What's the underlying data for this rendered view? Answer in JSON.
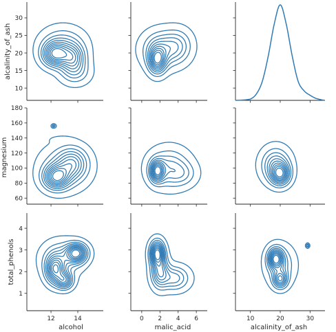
{
  "chart_data": {
    "type": "pairgrid-kde",
    "variables": [
      "alcohol",
      "malic_acid",
      "alcalinity_of_ash"
    ],
    "row_variables": [
      "alcalinity_of_ash",
      "magnesium",
      "total_phenols"
    ],
    "col_variables": [
      "alcohol",
      "malic_acid",
      "alcalinity_of_ash"
    ],
    "line_color": "#2f7ab4",
    "axes": {
      "alcohol": {
        "range": [
          10.2,
          15.9
        ],
        "ticks": [
          12,
          14
        ]
      },
      "malic_acid": {
        "range": [
          -1.2,
          7.2
        ],
        "ticks": [
          0,
          2,
          4,
          6
        ]
      },
      "alcalinity_of_ash": {
        "range": [
          5,
          35
        ],
        "ticks": [
          10,
          20,
          30
        ],
        "row_range": [
          6.5,
          34.5
        ],
        "row_ticks": [
          10,
          15,
          20,
          25,
          30
        ]
      },
      "magnesium": {
        "range": [
          52,
          180
        ],
        "ticks": [
          60,
          80,
          100,
          120,
          140,
          160,
          180
        ]
      },
      "total_phenols": {
        "range": [
          0.2,
          4.7
        ],
        "ticks": [
          1,
          2,
          3,
          4
        ]
      }
    },
    "panels": [
      {
        "row": 0,
        "col": 0,
        "kind": "kde2d",
        "peaks": [
          {
            "x": 12.3,
            "y": 19.7,
            "sx": 0.6,
            "sy": 2.2,
            "w": 1.0
          },
          {
            "x": 13.6,
            "y": 18.6,
            "sx": 0.6,
            "sy": 2.5,
            "w": 0.75
          },
          {
            "x": 12.9,
            "y": 22.5,
            "sx": 1.0,
            "sy": 3.0,
            "w": 0.35
          },
          {
            "x": 13.8,
            "y": 14.5,
            "sx": 0.7,
            "sy": 2.2,
            "w": 0.3
          }
        ]
      },
      {
        "row": 0,
        "col": 1,
        "kind": "kde2d",
        "peaks": [
          {
            "x": 1.7,
            "y": 18.0,
            "sx": 0.6,
            "sy": 2.4,
            "w": 1.0
          },
          {
            "x": 2.2,
            "y": 21.0,
            "sx": 1.3,
            "sy": 3.2,
            "w": 0.55
          },
          {
            "x": 4.0,
            "y": 22.0,
            "sx": 1.0,
            "sy": 3.0,
            "w": 0.35
          }
        ]
      },
      {
        "row": 0,
        "col": 2,
        "kind": "kde1d",
        "x": [
          5,
          10,
          12,
          14,
          16,
          18,
          20,
          22,
          24,
          26,
          28,
          30,
          32,
          35
        ],
        "y": [
          0.0,
          0.002,
          0.01,
          0.03,
          0.07,
          0.12,
          0.15,
          0.12,
          0.07,
          0.03,
          0.015,
          0.008,
          0.003,
          0.0
        ]
      },
      {
        "row": 1,
        "col": 0,
        "kind": "kde2d",
        "peaks": [
          {
            "x": 12.4,
            "y": 88,
            "sx": 0.6,
            "sy": 10,
            "w": 1.0
          },
          {
            "x": 13.6,
            "y": 106,
            "sx": 0.7,
            "sy": 13,
            "w": 0.55
          },
          {
            "x": 13.0,
            "y": 100,
            "sx": 1.1,
            "sy": 18,
            "w": 0.35
          }
        ],
        "islands": [
          {
            "x": 12.2,
            "y": 156,
            "sx": 0.1,
            "sy": 1.5,
            "w": 0.35
          },
          {
            "x": 12.7,
            "y": 138,
            "sx": 0.55,
            "sy": 3,
            "w": 0.06
          }
        ]
      },
      {
        "row": 1,
        "col": 1,
        "kind": "kde2d",
        "peaks": [
          {
            "x": 1.7,
            "y": 96,
            "sx": 0.5,
            "sy": 9,
            "w": 1.0
          },
          {
            "x": 3.0,
            "y": 100,
            "sx": 1.4,
            "sy": 16,
            "w": 0.45
          },
          {
            "x": 4.5,
            "y": 92,
            "sx": 1.0,
            "sy": 10,
            "w": 0.2
          }
        ]
      },
      {
        "row": 1,
        "col": 2,
        "kind": "kde2d",
        "peaks": [
          {
            "x": 20.0,
            "y": 92,
            "sx": 2.0,
            "sy": 9,
            "w": 1.0
          },
          {
            "x": 18.5,
            "y": 104,
            "sx": 3.0,
            "sy": 14,
            "w": 0.6
          }
        ]
      },
      {
        "row": 2,
        "col": 0,
        "kind": "kde2d",
        "peaks": [
          {
            "x": 13.9,
            "y": 2.85,
            "sx": 0.5,
            "sy": 0.28,
            "w": 1.0
          },
          {
            "x": 12.3,
            "y": 2.1,
            "sx": 0.45,
            "sy": 0.4,
            "w": 0.85
          },
          {
            "x": 13.0,
            "y": 1.6,
            "sx": 0.4,
            "sy": 0.25,
            "w": 0.7
          },
          {
            "x": 12.8,
            "y": 2.6,
            "sx": 0.9,
            "sy": 0.5,
            "w": 0.35
          }
        ]
      },
      {
        "row": 2,
        "col": 1,
        "kind": "kde2d",
        "peaks": [
          {
            "x": 1.7,
            "y": 2.85,
            "sx": 0.5,
            "sy": 0.35,
            "w": 1.0
          },
          {
            "x": 2.0,
            "y": 2.0,
            "sx": 0.6,
            "sy": 0.45,
            "w": 0.6
          },
          {
            "x": 3.6,
            "y": 1.7,
            "sx": 1.0,
            "sy": 0.35,
            "w": 0.4
          }
        ]
      },
      {
        "row": 2,
        "col": 2,
        "kind": "kde2d",
        "peaks": [
          {
            "x": 18.5,
            "y": 2.6,
            "sx": 1.6,
            "sy": 0.3,
            "w": 1.0
          },
          {
            "x": 20.0,
            "y": 1.65,
            "sx": 1.5,
            "sy": 0.25,
            "w": 0.75
          },
          {
            "x": 20.0,
            "y": 2.3,
            "sx": 3.0,
            "sy": 0.55,
            "w": 0.35
          }
        ],
        "islands": [
          {
            "x": 29.2,
            "y": 3.2,
            "sx": 0.35,
            "sy": 0.06,
            "w": 0.4
          }
        ]
      }
    ]
  }
}
